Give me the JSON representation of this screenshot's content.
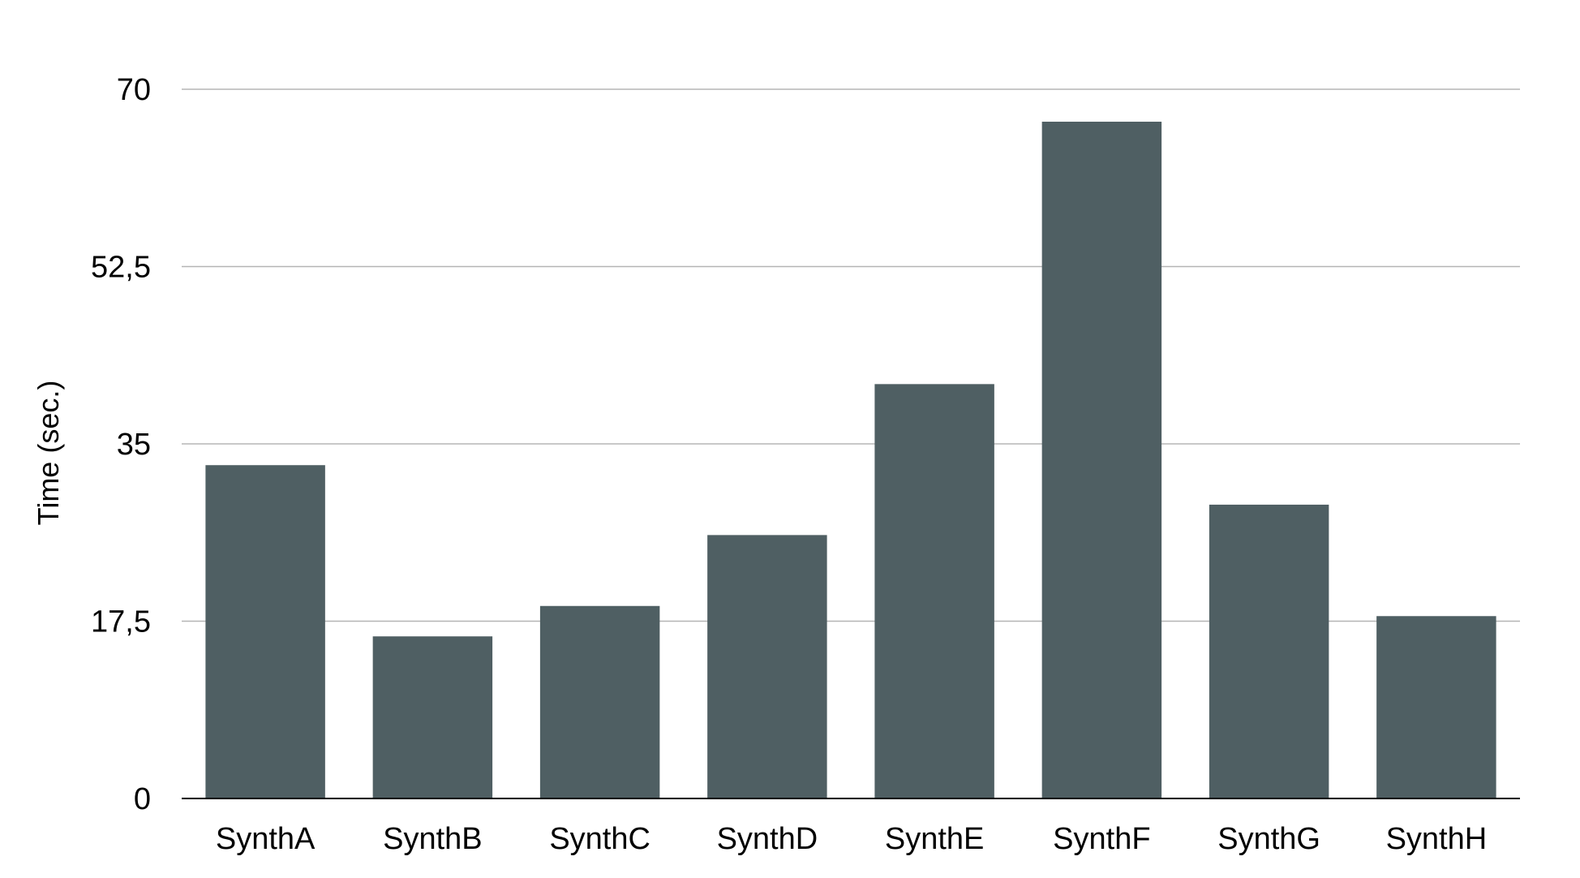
{
  "chart_data": {
    "type": "bar",
    "title": "",
    "xlabel": "",
    "ylabel": "Time (sec.)",
    "categories": [
      "SynthA",
      "SynthB",
      "SynthC",
      "SynthD",
      "SynthE",
      "SynthF",
      "SynthG",
      "SynthH"
    ],
    "values": [
      32.9,
      16,
      19,
      26,
      40.9,
      66.8,
      29,
      18
    ],
    "ylim": [
      0,
      70
    ],
    "yticks": [
      0,
      17.5,
      35,
      52.5,
      70
    ],
    "ytick_labels": [
      "0",
      "17,5",
      "35",
      "52,5",
      "70"
    ],
    "grid": true,
    "legend": "none",
    "bar_color": "#4f5f63"
  }
}
